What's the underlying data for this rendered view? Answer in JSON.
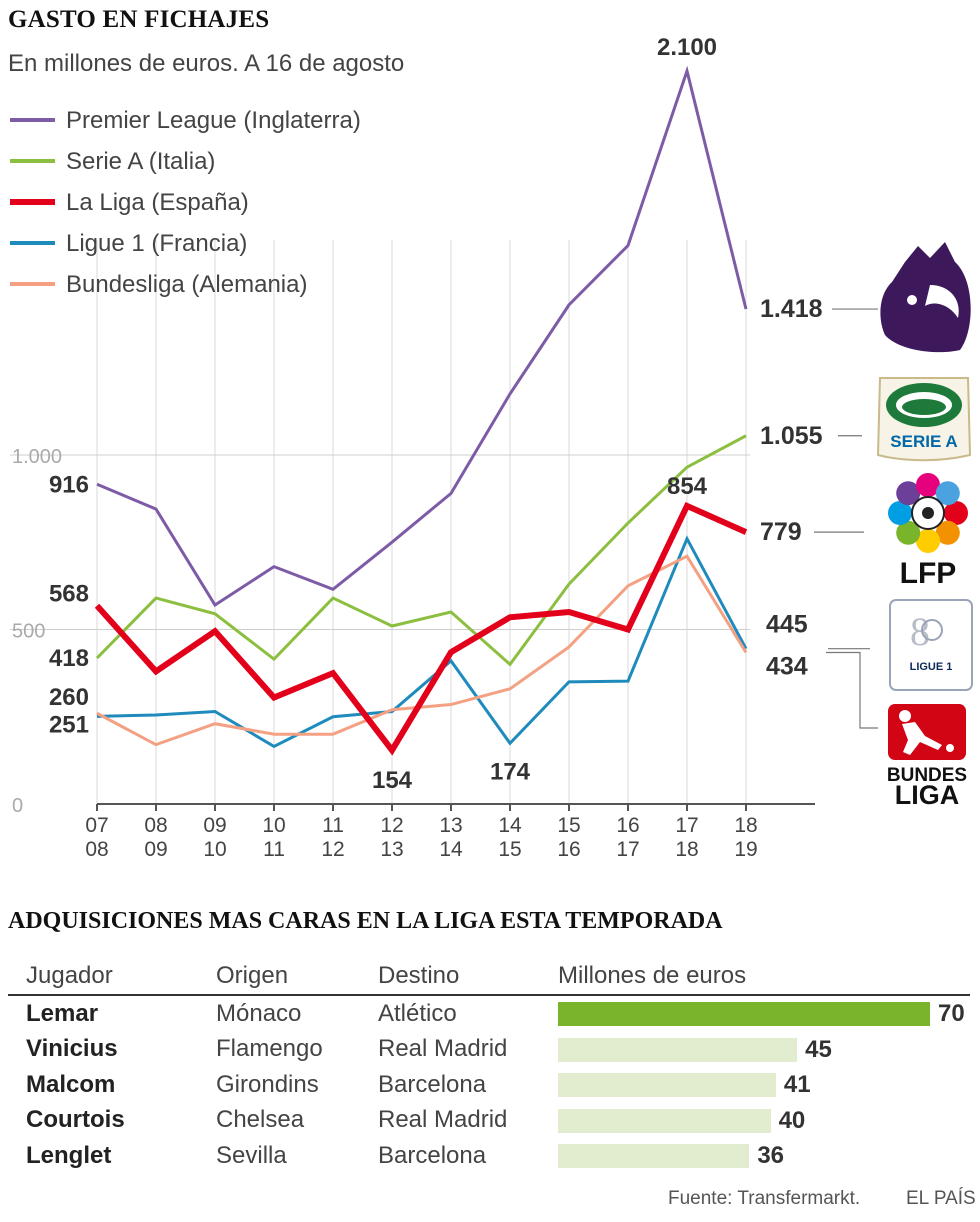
{
  "header": {
    "title": "GASTO EN FICHAJES",
    "subtitle": "En millones de euros. A 16 de agosto"
  },
  "chart_data": {
    "type": "line",
    "title": "GASTO EN FICHAJES",
    "subtitle": "En millones de euros. A 16 de agosto",
    "xlabel": "",
    "ylabel": "",
    "categories": [
      "07\n08",
      "08\n09",
      "09\n10",
      "10\n11",
      "11\n12",
      "12\n13",
      "13\n14",
      "14\n15",
      "15\n16",
      "16\n17",
      "17\n18",
      "18\n19"
    ],
    "ylim": [
      0,
      2100
    ],
    "yticks": [
      0,
      500,
      1000
    ],
    "ytick_labels": [
      "0",
      "500",
      "1.000"
    ],
    "grid": "vertical",
    "legend_position": "top-left",
    "series": [
      {
        "name": "Premier League (Inglaterra)",
        "color": "#7d5ba6",
        "width": 3,
        "values": [
          916,
          845,
          570,
          680,
          615,
          750,
          890,
          1175,
          1430,
          1600,
          2100,
          1418
        ]
      },
      {
        "name": "Serie A (Italia)",
        "color": "#8cbf3f",
        "width": 3,
        "values": [
          418,
          590,
          545,
          415,
          590,
          510,
          550,
          400,
          630,
          805,
          965,
          1055
        ]
      },
      {
        "name": "La Liga (España)",
        "color": "#e3001b",
        "width": 6,
        "values": [
          568,
          380,
          495,
          305,
          375,
          154,
          435,
          535,
          550,
          500,
          854,
          779
        ]
      },
      {
        "name": "Ligue 1 (Francia)",
        "color": "#1f8bbd",
        "width": 3,
        "values": [
          251,
          255,
          265,
          165,
          250,
          265,
          410,
          174,
          350,
          352,
          760,
          445
        ]
      },
      {
        "name": "Bundesliga (Alemania)",
        "color": "#f4a183",
        "width": 3,
        "values": [
          260,
          170,
          230,
          200,
          200,
          270,
          285,
          330,
          450,
          625,
          710,
          434
        ]
      }
    ],
    "annotations": [
      {
        "text": "2.100",
        "series": 0,
        "index": 10
      },
      {
        "text": "916",
        "series": 0,
        "index": 0
      },
      {
        "text": "1.418",
        "series": 0,
        "index": 11
      },
      {
        "text": "1.055",
        "series": 1,
        "index": 11
      },
      {
        "text": "418",
        "series": 1,
        "index": 0
      },
      {
        "text": "854",
        "series": 2,
        "index": 10
      },
      {
        "text": "779",
        "series": 2,
        "index": 11
      },
      {
        "text": "568",
        "series": 2,
        "index": 0
      },
      {
        "text": "154",
        "series": 2,
        "index": 5
      },
      {
        "text": "445",
        "series": 3,
        "index": 11
      },
      {
        "text": "251",
        "series": 3,
        "index": 0
      },
      {
        "text": "174",
        "series": 3,
        "index": 7
      },
      {
        "text": "434",
        "series": 4,
        "index": 11
      },
      {
        "text": "260",
        "series": 4,
        "index": 0
      }
    ]
  },
  "logos": [
    {
      "icon": "premier-league-lion-icon",
      "color": "#3d195b"
    },
    {
      "icon": "serie-a-shield-icon",
      "text": "SERIE A",
      "color": "#0068a8"
    },
    {
      "icon": "lfp-ball-icon",
      "text": "LFP",
      "color": "#111111"
    },
    {
      "icon": "ligue1-badge-icon",
      "text": "LIGUE 1",
      "color": "#0b2a5a"
    },
    {
      "icon": "bundesliga-player-icon",
      "text": "BUNDES LIGA",
      "color": "#d20515"
    }
  ],
  "table": {
    "title": "ADQUISICIONES MAS CARAS EN LA LIGA ESTA TEMPORADA",
    "headers": [
      "Jugador",
      "Origen",
      "Destino",
      "Millones de euros"
    ],
    "max_value": 70,
    "rows": [
      {
        "player": "Lemar",
        "origin": "Mónaco",
        "destination": "Atlético",
        "value": 70
      },
      {
        "player": "Vinicius",
        "origin": "Flamengo",
        "destination": "Real Madrid",
        "value": 45
      },
      {
        "player": "Malcom",
        "origin": "Girondins",
        "destination": "Barcelona",
        "value": 41
      },
      {
        "player": "Courtois",
        "origin": "Chelsea",
        "destination": "Real Madrid",
        "value": 40
      },
      {
        "player": "Lenglet",
        "origin": "Sevilla",
        "destination": "Barcelona",
        "value": 36
      }
    ]
  },
  "footer": {
    "source": "Fuente: Transfermarkt.",
    "brand": "EL PAÍS"
  }
}
